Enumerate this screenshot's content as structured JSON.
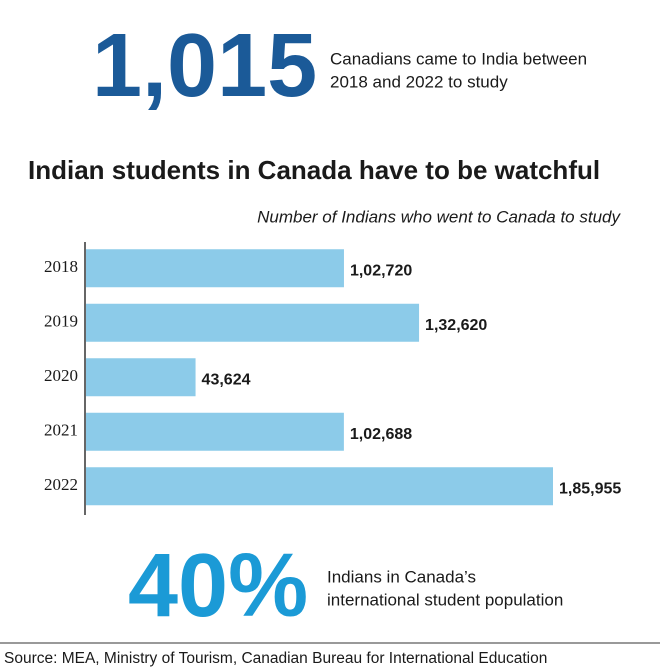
{
  "headline": {
    "number": "1,015",
    "text_lines": [
      "Canadians came to India between",
      "2018 and 2022 to study"
    ]
  },
  "chart_data": {
    "type": "bar",
    "orientation": "horizontal",
    "title": "Indian students in Canada have to be watchful",
    "subtitle": "Number of Indians who went to Canada to study",
    "categories": [
      "2018",
      "2019",
      "2020",
      "2021",
      "2022"
    ],
    "values": [
      102720,
      132620,
      43624,
      102688,
      185955
    ],
    "value_labels": [
      "1,02,720",
      "1,32,620",
      "43,624",
      "1,02,688",
      "1,85,955"
    ],
    "color": "#8ccbe9"
  },
  "stat": {
    "number": "40%",
    "text_lines": [
      "Indians in Canada’s",
      "international student population"
    ]
  },
  "source": "Source: MEA, Ministry of Tourism, Canadian Bureau for International Education"
}
